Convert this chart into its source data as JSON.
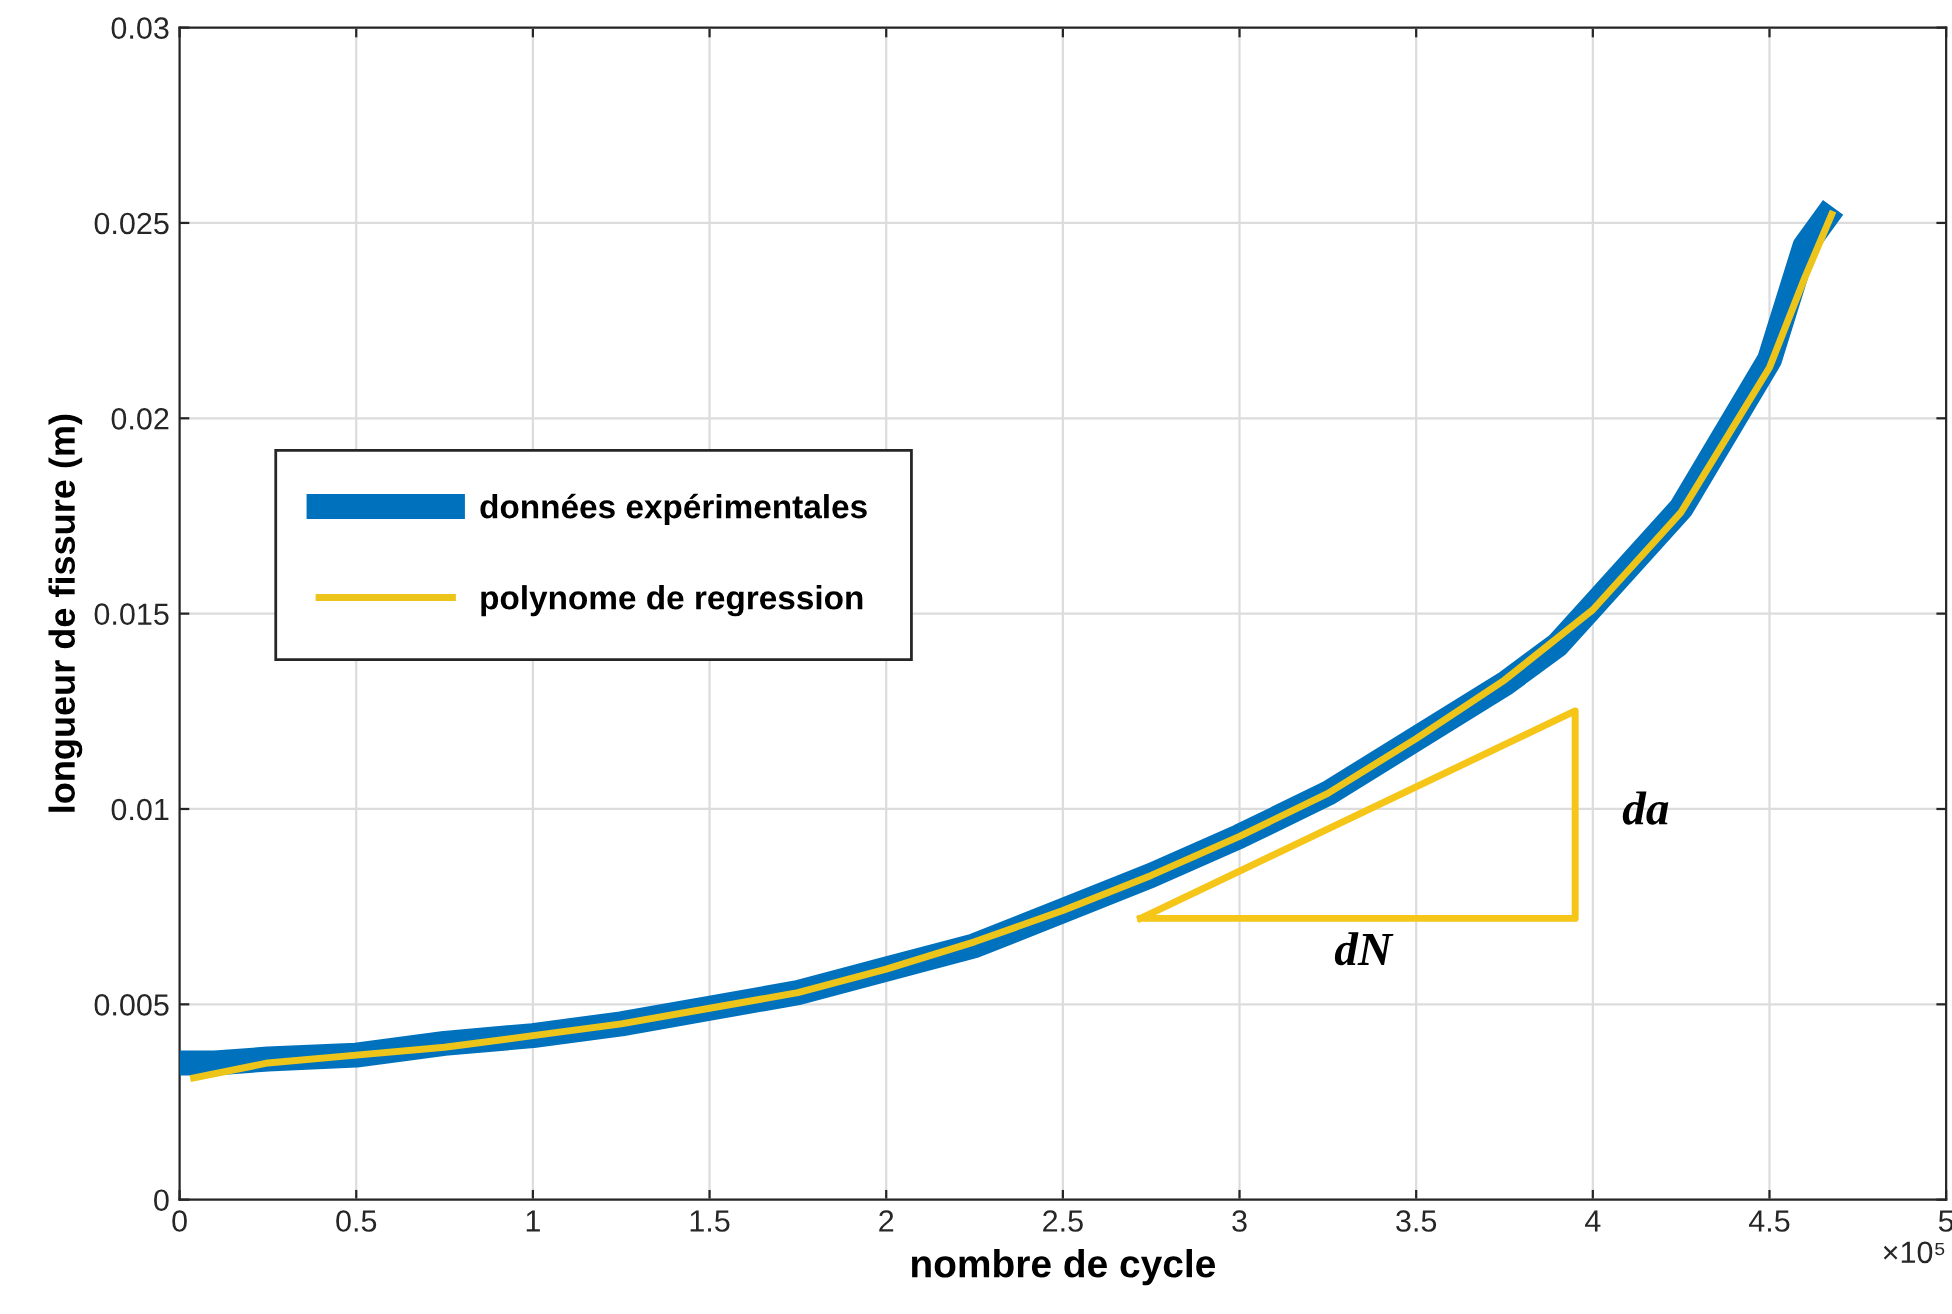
{
  "chart_data": {
    "type": "line",
    "xlabel": "nombre de cycle",
    "ylabel": "longueur de fissure (m)",
    "xlim": [
      0,
      5
    ],
    "xticks": [
      0,
      0.5,
      1,
      1.5,
      2,
      2.5,
      3,
      3.5,
      4,
      4.5,
      5
    ],
    "ylim": [
      0,
      0.03
    ],
    "yticks": [
      0,
      0.005,
      0.01,
      0.015,
      0.02,
      0.025,
      0.03
    ],
    "grid": true,
    "legend": "left",
    "marker": "none",
    "line_style": "solid",
    "series": [
      {
        "name": "données expérimentales",
        "color": "#0072bd",
        "x": [
          0,
          0.1,
          0.25,
          0.5,
          0.75,
          1,
          1.25,
          1.5,
          1.75,
          2,
          2.25,
          2.5,
          2.75,
          3,
          3.25,
          3.5,
          3.75,
          3.9,
          4,
          4.25,
          4.5,
          4.6,
          4.68
        ],
        "values": [
          0.0035,
          0.0035,
          0.0036,
          0.0037,
          0.004,
          0.0042,
          0.0045,
          0.0049,
          0.0053,
          0.0059,
          0.0065,
          0.0074,
          0.0083,
          0.0093,
          0.0104,
          0.0118,
          0.0132,
          0.0142,
          0.0152,
          0.0177,
          0.0215,
          0.0244,
          0.0254
        ]
      },
      {
        "name": "polynome de regression",
        "color": "#edc51a",
        "x": [
          0.03,
          0.25,
          0.5,
          0.75,
          1,
          1.25,
          1.5,
          1.75,
          2,
          2.25,
          2.5,
          2.75,
          3,
          3.25,
          3.5,
          3.75,
          4,
          4.25,
          4.5,
          4.6,
          4.68
        ],
        "values": [
          0.0031,
          0.0035,
          0.0037,
          0.0039,
          0.0042,
          0.0045,
          0.0049,
          0.0053,
          0.0059,
          0.0066,
          0.0074,
          0.0083,
          0.0093,
          0.0104,
          0.0118,
          0.0133,
          0.0151,
          0.0176,
          0.0213,
          0.0236,
          0.0253
        ]
      }
    ],
    "annotations": [
      "da",
      "dN",
      "×10⁵"
    ]
  }
}
